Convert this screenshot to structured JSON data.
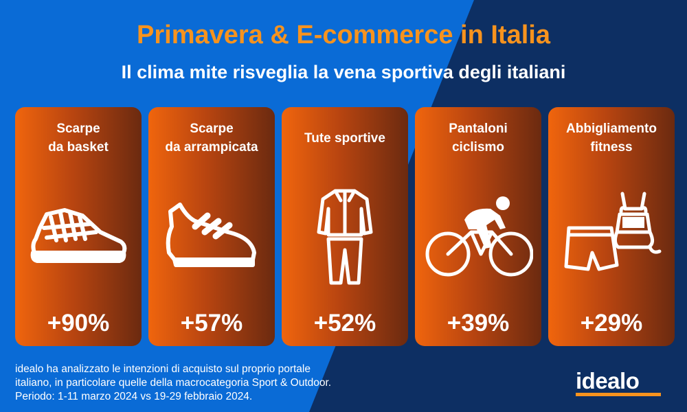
{
  "header": {
    "title": "Primavera & E-commerce in Italia",
    "subtitle": "Il clima mite risveglia la vena sportiva degli italiani"
  },
  "categories": [
    {
      "label_lines": [
        "Scarpe",
        "da basket"
      ],
      "value": "+90%",
      "icon": "basketball-shoe-icon"
    },
    {
      "label_lines": [
        "Scarpe",
        "da arrampicata"
      ],
      "value": "+57%",
      "icon": "climbing-shoe-icon"
    },
    {
      "label_lines": [
        "Tute sportive",
        ""
      ],
      "value": "+52%",
      "icon": "tracksuit-icon"
    },
    {
      "label_lines": [
        "Pantaloni",
        "ciclismo"
      ],
      "value": "+39%",
      "icon": "cyclist-icon"
    },
    {
      "label_lines": [
        "Abbigliamento",
        "fitness"
      ],
      "value": "+29%",
      "icon": "fitness-clothing-icon"
    }
  ],
  "footnote": {
    "lines": [
      "idealo ha analizzato le intenzioni di acquisto sul proprio portale",
      "italiano, in particolare quelle della macrocategoria Sport & Outdoor.",
      "Periodo: 1-11 marzo 2024 vs 19-29 febbraio 2024."
    ]
  },
  "brand": {
    "logo_text": "idealo"
  },
  "colors": {
    "background_left": "#0a6bd6",
    "background_right": "#0d2f63",
    "title": "#f7931e",
    "card_start": "#f0650d",
    "card_end": "#6b2a10",
    "logo_underline": "#f7931e"
  }
}
